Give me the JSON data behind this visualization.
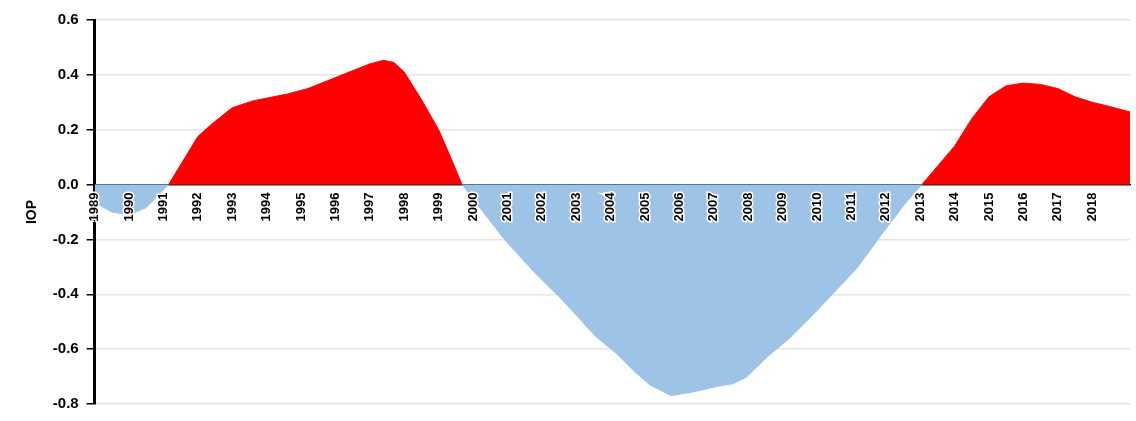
{
  "chart_data": {
    "type": "area",
    "ylabel": "IOP",
    "xlim": [
      1989,
      2019.1
    ],
    "xticks": [
      1989,
      1990,
      1991,
      1992,
      1993,
      1994,
      1995,
      1996,
      1997,
      1998,
      1999,
      2000,
      2001,
      2002,
      2003,
      2004,
      2005,
      2006,
      2007,
      2008,
      2009,
      2010,
      2011,
      2012,
      2013,
      2014,
      2015,
      2016,
      2017,
      2018
    ],
    "ylim": [
      -0.8,
      0.6
    ],
    "yticks": [
      {
        "value": -0.8,
        "label": "-0.8"
      },
      {
        "value": -0.6,
        "label": "-0.6"
      },
      {
        "value": -0.4,
        "label": "-0.4"
      },
      {
        "value": -0.2,
        "label": "-0.2"
      },
      {
        "value": 0,
        "label": "0.0"
      },
      {
        "value": 0.2,
        "label": "0.2"
      },
      {
        "value": 0.4,
        "label": "0.4"
      },
      {
        "value": 0.6,
        "label": "0.6"
      }
    ],
    "grid": "y",
    "legend": false,
    "series": [
      {
        "color": "#9dc3e6",
        "x": [
          1989,
          1989.5,
          1990,
          1990.5,
          1991.15
        ],
        "values": [
          -0.065,
          -0.1,
          -0.11,
          -0.084,
          0
        ]
      },
      {
        "color": "#ff0000",
        "x": [
          1991.15,
          1992,
          1992.4,
          1993,
          1993.6,
          1994.2,
          1994.6,
          1995.2,
          1996,
          1996.6,
          1997,
          1997.4,
          1997.7,
          1998,
          1998.5,
          1999,
          1999.3,
          1999.68
        ],
        "values": [
          0,
          0.175,
          0.22,
          0.28,
          0.305,
          0.32,
          0.33,
          0.35,
          0.39,
          0.42,
          0.44,
          0.453,
          0.445,
          0.41,
          0.31,
          0.2,
          0.114,
          0
        ]
      },
      {
        "color": "#9dc3e6",
        "x": [
          1999.68,
          2000.88,
          2001.77,
          2002.57,
          2003.56,
          2004.16,
          2004.76,
          2005.16,
          2005.76,
          2006.36,
          2007.16,
          2007.56,
          2007.96,
          2008.56,
          2009.16,
          2009.95,
          2010.55,
          2011.15,
          2011.95,
          2012.55,
          2013.05
        ],
        "values": [
          0,
          -0.195,
          -0.318,
          -0.417,
          -0.553,
          -0.615,
          -0.689,
          -0.732,
          -0.769,
          -0.757,
          -0.734,
          -0.726,
          -0.701,
          -0.627,
          -0.565,
          -0.466,
          -0.386,
          -0.306,
          -0.17,
          -0.071,
          0
        ]
      },
      {
        "color": "#ff0000",
        "x": [
          2013.05,
          2014,
          2014.5,
          2015,
          2015.5,
          2016,
          2016.5,
          2017,
          2017.5,
          2018,
          2018.5,
          2019.1
        ],
        "values": [
          0,
          0.14,
          0.24,
          0.32,
          0.36,
          0.37,
          0.365,
          0.35,
          0.32,
          0.3,
          0.285,
          0.265
        ]
      }
    ]
  }
}
